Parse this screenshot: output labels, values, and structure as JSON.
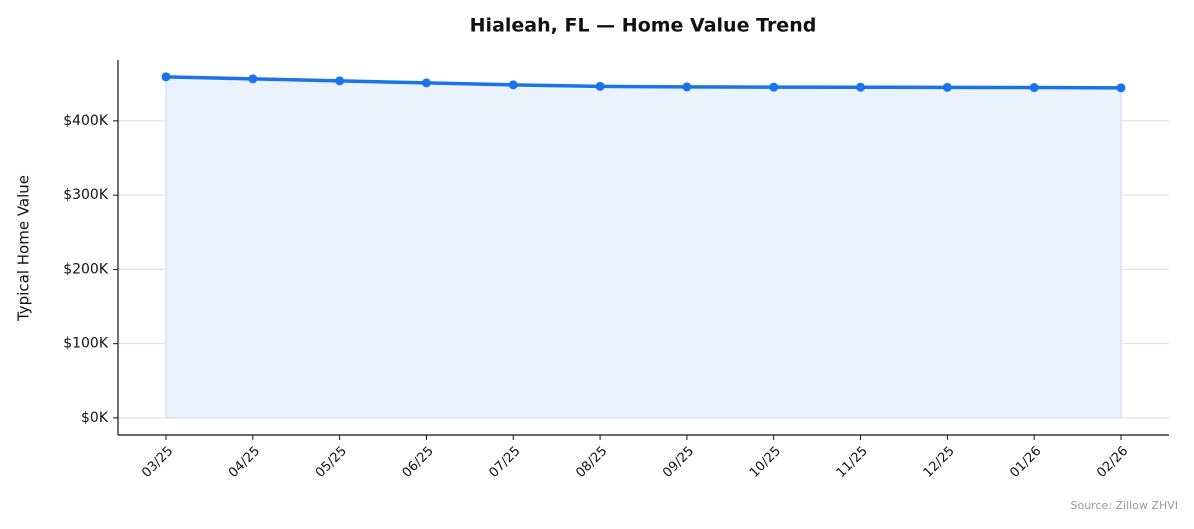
{
  "chart_data": {
    "type": "line",
    "title": "Hialeah, FL — Home Value Trend",
    "y_label": "Typical Home Value",
    "source": "Source: Zillow ZHVI",
    "categories": [
      "03/25",
      "04/25",
      "05/25",
      "06/25",
      "07/25",
      "08/25",
      "09/25",
      "10/25",
      "11/25",
      "12/25",
      "01/26",
      "02/26"
    ],
    "values": [
      459300,
      456600,
      453900,
      451200,
      448500,
      446500,
      445800,
      445400,
      445300,
      445200,
      444900,
      444500
    ],
    "color": "#1a73e8",
    "area_fill": "#eaf2fd",
    "ylim": [
      -23000,
      482000
    ],
    "yticks": [
      {
        "value": 0,
        "label": "$0K"
      },
      {
        "value": 100000,
        "label": "$100K"
      },
      {
        "value": 200000,
        "label": "$200K"
      },
      {
        "value": 300000,
        "label": "$300K"
      },
      {
        "value": 400000,
        "label": "$400K"
      }
    ],
    "grid": true
  }
}
